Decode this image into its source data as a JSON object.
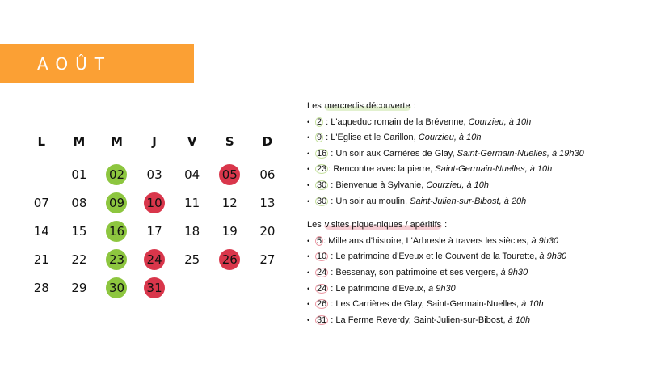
{
  "title": "AOÛT",
  "colors": {
    "banner": "#fba034",
    "wednesday": "#8dc63f",
    "picnic": "#d9364b"
  },
  "calendar": {
    "weekdays": [
      "L",
      "M",
      "M",
      "J",
      "V",
      "S",
      "D"
    ],
    "weeks": [
      [
        {
          "d": ""
        },
        {
          "d": "01"
        },
        {
          "d": "02",
          "m": "green"
        },
        {
          "d": "03"
        },
        {
          "d": "04"
        },
        {
          "d": "05",
          "m": "red"
        },
        {
          "d": "06"
        }
      ],
      [
        {
          "d": "07"
        },
        {
          "d": "08"
        },
        {
          "d": "09",
          "m": "green"
        },
        {
          "d": "10",
          "m": "red"
        },
        {
          "d": "11"
        },
        {
          "d": "12"
        },
        {
          "d": "13"
        }
      ],
      [
        {
          "d": "14"
        },
        {
          "d": "15"
        },
        {
          "d": "16",
          "m": "green"
        },
        {
          "d": "17"
        },
        {
          "d": "18"
        },
        {
          "d": "19"
        },
        {
          "d": "20"
        }
      ],
      [
        {
          "d": "21"
        },
        {
          "d": "22"
        },
        {
          "d": "23",
          "m": "green"
        },
        {
          "d": "24",
          "m": "red"
        },
        {
          "d": "25"
        },
        {
          "d": "26",
          "m": "red"
        },
        {
          "d": "27"
        }
      ],
      [
        {
          "d": "28"
        },
        {
          "d": "29"
        },
        {
          "d": "30",
          "m": "green"
        },
        {
          "d": "31",
          "m": "red"
        },
        {
          "d": ""
        },
        {
          "d": ""
        },
        {
          "d": ""
        }
      ]
    ]
  },
  "sections": [
    {
      "prefix": "Les ",
      "highlight": "mercredis découverte",
      "suffix": " :",
      "color": "green",
      "items": [
        {
          "num": "2",
          "sep": " : ",
          "text": "L'aqueduc romain de la Brévenne, ",
          "em": "Courzieu, à 10h"
        },
        {
          "num": "9",
          "sep": " : ",
          "text": "L'Eglise et le Carillon, ",
          "em": "Courzieu, à 10h"
        },
        {
          "num": "16",
          "sep": " : ",
          "text": "Un soir aux Carrières de Glay, ",
          "em": "Saint-Germain-Nuelles, à 19h30"
        },
        {
          "num": "23",
          "sep": ": ",
          "text": "Rencontre avec la pierre, ",
          "em": "Saint-Germain-Nuelles, à 10h"
        },
        {
          "num": "30",
          "sep": " : ",
          "text": "Bienvenue à Sylvanie, ",
          "em": "Courzieu, à 10h"
        },
        {
          "num": "30",
          "sep": " : ",
          "text": "Un soir au moulin, ",
          "em": "Saint-Julien-sur-Bibost, à 20h"
        }
      ]
    },
    {
      "prefix": "Les ",
      "highlight": "visites pique-niques / apéritifs",
      "suffix": " :",
      "color": "red",
      "items": [
        {
          "num": "5",
          "sep": ": ",
          "text": "Mille ans d'histoire, L'Arbresle à travers les siècles, ",
          "em": "à 9h30"
        },
        {
          "num": "10",
          "sep": " : ",
          "text": "Le patrimoine d'Eveux et le Couvent de la Tourette, ",
          "em": "à 9h30"
        },
        {
          "num": "24",
          "sep": " : ",
          "text": "Bessenay, son patrimoine et ses vergers, ",
          "em": "à 9h30"
        },
        {
          "num": "24",
          "sep": " : ",
          "text": "Le patrimoine d'Eveux, ",
          "em": "à 9h30"
        },
        {
          "num": "26",
          "sep": " : ",
          "text": "Les Carrières de Glay, Saint-Germain-Nuelles, ",
          "em": "à 10h"
        },
        {
          "num": "31",
          "sep": " : ",
          "text": "La Ferme Reverdy, Saint-Julien-sur-Bibost, ",
          "em": "à 10h"
        }
      ]
    }
  ]
}
